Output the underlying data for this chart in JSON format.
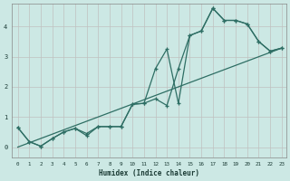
{
  "xlabel": "Humidex (Indice chaleur)",
  "bg_color": "#cce8e4",
  "grid_color": "#c0c0c0",
  "line_color": "#2e6e64",
  "xlim": [
    -0.5,
    23.4
  ],
  "ylim": [
    -0.35,
    4.75
  ],
  "xticks": [
    0,
    1,
    2,
    3,
    4,
    5,
    6,
    7,
    8,
    9,
    10,
    11,
    12,
    13,
    14,
    15,
    16,
    17,
    18,
    19,
    20,
    21,
    22,
    23
  ],
  "yticks": [
    0,
    1,
    2,
    3,
    4
  ],
  "line1_x": [
    0,
    1,
    2,
    3,
    4,
    5,
    6,
    7,
    8,
    9,
    10,
    11,
    12,
    13,
    14,
    15,
    16,
    17,
    18,
    19,
    20,
    21,
    22,
    23
  ],
  "line1_y": [
    0.65,
    0.18,
    0.03,
    0.28,
    0.5,
    0.62,
    0.38,
    0.68,
    0.68,
    0.68,
    1.42,
    1.45,
    2.6,
    3.25,
    1.45,
    3.7,
    3.85,
    4.6,
    4.2,
    4.2,
    4.08,
    3.5,
    3.18,
    3.28
  ],
  "line2_x": [
    0,
    1,
    2,
    3,
    4,
    5,
    6,
    7,
    8,
    9,
    10,
    11,
    12,
    13,
    14,
    15,
    16,
    17,
    18,
    19,
    20,
    21,
    22,
    23
  ],
  "line2_y": [
    0.65,
    0.18,
    0.03,
    0.28,
    0.5,
    0.62,
    0.45,
    0.68,
    0.68,
    0.68,
    1.42,
    1.45,
    1.6,
    1.38,
    2.6,
    3.7,
    3.85,
    4.6,
    4.2,
    4.2,
    4.08,
    3.5,
    3.18,
    3.28
  ],
  "line3_x": [
    0,
    23
  ],
  "line3_y": [
    0.0,
    3.28
  ]
}
